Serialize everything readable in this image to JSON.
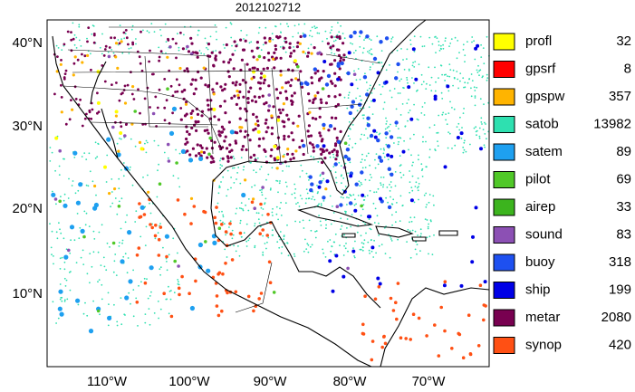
{
  "title": "2012102712",
  "lat_labels": [
    "40°N",
    "30°N",
    "20°N",
    "10°N"
  ],
  "lon_labels": [
    "110°W",
    "100°W",
    "90°W",
    "80°W",
    "70°W"
  ],
  "legend": [
    {
      "name": "profl",
      "count": "32",
      "color": "#ffff00"
    },
    {
      "name": "gpsrf",
      "count": "8",
      "color": "#ff0000"
    },
    {
      "name": "gpspw",
      "count": "357",
      "color": "#ffb400"
    },
    {
      "name": "satob",
      "count": "13982",
      "color": "#2ee0b0"
    },
    {
      "name": "satem",
      "count": "89",
      "color": "#1ea0f0"
    },
    {
      "name": "pilot",
      "count": "69",
      "color": "#50c828"
    },
    {
      "name": "airep",
      "count": "33",
      "color": "#3cb41e"
    },
    {
      "name": "sound",
      "count": "83",
      "color": "#8c50b4"
    },
    {
      "name": "buoy",
      "count": "318",
      "color": "#1e50f0"
    },
    {
      "name": "ship",
      "count": "199",
      "color": "#0000e6"
    },
    {
      "name": "metar",
      "count": "2080",
      "color": "#780050"
    },
    {
      "name": "synop",
      "count": "420",
      "color": "#ff5014"
    }
  ]
}
